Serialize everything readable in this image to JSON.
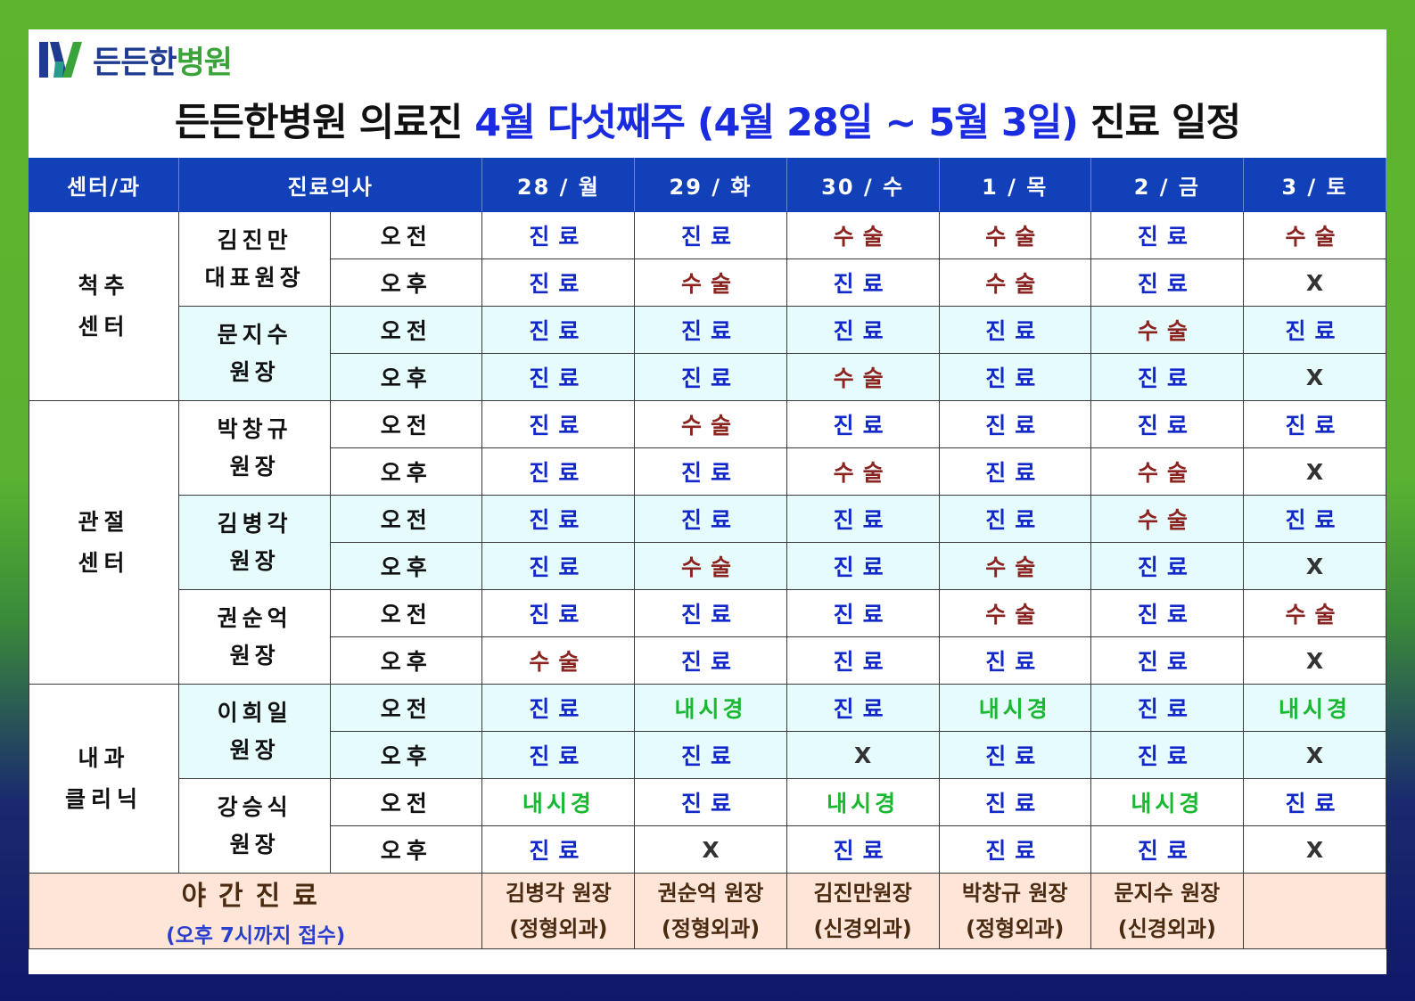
{
  "logo": {
    "name_a": "든든한",
    "name_b": "병원"
  },
  "title": {
    "prefix": "든든한병원 의료진 ",
    "highlight": "4월 다섯째주 (4월 28일 ~ 5월 3일)",
    "suffix": " 진료 일정"
  },
  "colors": {
    "header_bg": "#1240b8",
    "jin": "#1228c8",
    "su": "#8b2420",
    "ne": "#18b830",
    "shade": "#e6fbfc",
    "night": "#fde5d8"
  },
  "header": {
    "dept": "센터/과",
    "doctor": "진료의사",
    "days": [
      "28 / 월",
      "29 / 화",
      "30 / 수",
      "1 / 목",
      "2 / 금",
      "3 / 토"
    ]
  },
  "session_labels": {
    "am": "오전",
    "pm": "오후"
  },
  "schedule": [
    {
      "dept_line1": "척추",
      "dept_line2": "센터",
      "doctors": [
        {
          "name1": "김진만",
          "name2": "대표원장",
          "am": [
            "진료",
            "진료",
            "수술",
            "수술",
            "진료",
            "수술"
          ],
          "pm": [
            "진료",
            "수술",
            "진료",
            "수술",
            "진료",
            "X"
          ]
        },
        {
          "name1": "문지수",
          "name2": "원장",
          "am": [
            "진료",
            "진료",
            "진료",
            "진료",
            "수술",
            "진료"
          ],
          "pm": [
            "진료",
            "진료",
            "수술",
            "진료",
            "진료",
            "X"
          ]
        }
      ]
    },
    {
      "dept_line1": "관절",
      "dept_line2": "센터",
      "doctors": [
        {
          "name1": "박창규",
          "name2": "원장",
          "am": [
            "진료",
            "수술",
            "진료",
            "진료",
            "진료",
            "진료"
          ],
          "pm": [
            "진료",
            "진료",
            "수술",
            "진료",
            "수술",
            "X"
          ]
        },
        {
          "name1": "김병각",
          "name2": "원장",
          "am": [
            "진료",
            "진료",
            "진료",
            "진료",
            "수술",
            "진료"
          ],
          "pm": [
            "진료",
            "수술",
            "진료",
            "수술",
            "진료",
            "X"
          ]
        },
        {
          "name1": "권순억",
          "name2": "원장",
          "am": [
            "진료",
            "진료",
            "진료",
            "수술",
            "진료",
            "수술"
          ],
          "pm": [
            "수술",
            "진료",
            "진료",
            "진료",
            "진료",
            "X"
          ]
        }
      ]
    },
    {
      "dept_line1": "내과",
      "dept_line2": "클리닉",
      "doctors": [
        {
          "name1": "이희일",
          "name2": "원장",
          "am": [
            "진료",
            "내시경",
            "진료",
            "내시경",
            "진료",
            "내시경"
          ],
          "pm": [
            "진료",
            "진료",
            "X",
            "진료",
            "진료",
            "X"
          ]
        },
        {
          "name1": "강승식",
          "name2": "원장",
          "am": [
            "내시경",
            "진료",
            "내시경",
            "진료",
            "내시경",
            "진료"
          ],
          "pm": [
            "진료",
            "X",
            "진료",
            "진료",
            "진료",
            "X"
          ]
        }
      ]
    }
  ],
  "night": {
    "label": "야간진료",
    "note": "(오후 7시까지 접수)",
    "doctors": [
      {
        "name": "김병각 원장",
        "dept": "(정형외과)"
      },
      {
        "name": "권순억 원장",
        "dept": "(정형외과)"
      },
      {
        "name": "김진만원장",
        "dept": "(신경외과)"
      },
      {
        "name": "박창규 원장",
        "dept": "(정형외과)"
      },
      {
        "name": "문지수 원장",
        "dept": "(신경외과)"
      },
      {
        "name": "",
        "dept": ""
      }
    ]
  }
}
